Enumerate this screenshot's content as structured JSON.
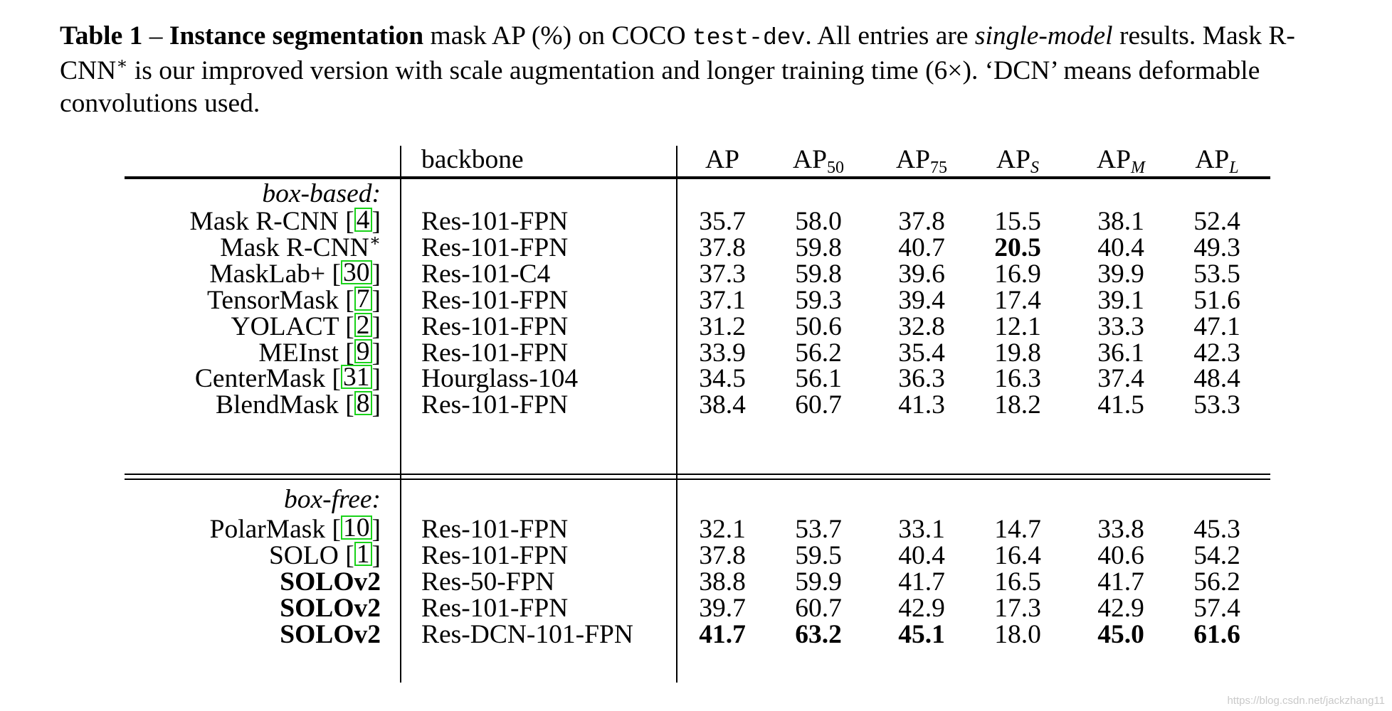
{
  "caption": {
    "label": "Table 1",
    "dash": " – ",
    "topic": "Instance segmentation",
    "part1": " mask AP (%) on COCO ",
    "code": "test-dev",
    "part2": ".  All entries are ",
    "emph": "single-model",
    "part3": " results. Mask R-CNN",
    "star": "∗",
    "part4": " is our improved version with scale augmentation and longer training time (6×). ‘DCN’ means deformable convolutions used."
  },
  "table": {
    "header": {
      "backbone": "backbone",
      "ap": "AP",
      "ap50_base": "AP",
      "ap50_sub": "50",
      "ap75_base": "AP",
      "ap75_sub": "75",
      "aps_base": "AP",
      "aps_sub": "S",
      "apm_base": "AP",
      "apm_sub": "M",
      "apl_base": "AP",
      "apl_sub": "L"
    },
    "groups": [
      {
        "title": "box-based:",
        "rows": [
          {
            "name": "Mask R-CNN [",
            "ref": "4",
            "close": "]",
            "backbone": "Res-101-FPN",
            "vals": [
              "35.7",
              "58.0",
              "37.8",
              "15.5",
              "38.1",
              "52.4"
            ],
            "bold": [
              false,
              false,
              false,
              false,
              false,
              false
            ]
          },
          {
            "name": "Mask R-CNN",
            "star": "∗",
            "backbone": "Res-101-FPN",
            "vals": [
              "37.8",
              "59.8",
              "40.7",
              "20.5",
              "40.4",
              "49.3"
            ],
            "bold": [
              false,
              false,
              false,
              true,
              false,
              false
            ]
          },
          {
            "name": "MaskLab+ [",
            "ref": "30",
            "close": "]",
            "backbone": "Res-101-C4",
            "vals": [
              "37.3",
              "59.8",
              "39.6",
              "16.9",
              "39.9",
              "53.5"
            ],
            "bold": [
              false,
              false,
              false,
              false,
              false,
              false
            ]
          },
          {
            "name": "TensorMask [",
            "ref": "7",
            "close": "]",
            "backbone": "Res-101-FPN",
            "vals": [
              "37.1",
              "59.3",
              "39.4",
              "17.4",
              "39.1",
              "51.6"
            ],
            "bold": [
              false,
              false,
              false,
              false,
              false,
              false
            ]
          },
          {
            "name": "YOLACT [",
            "ref": "2",
            "close": "]",
            "backbone": "Res-101-FPN",
            "vals": [
              "31.2",
              "50.6",
              "32.8",
              "12.1",
              "33.3",
              "47.1"
            ],
            "bold": [
              false,
              false,
              false,
              false,
              false,
              false
            ]
          },
          {
            "name": "MEInst [",
            "ref": "9",
            "close": "]",
            "backbone": "Res-101-FPN",
            "vals": [
              "33.9",
              "56.2",
              "35.4",
              "19.8",
              "36.1",
              "42.3"
            ],
            "bold": [
              false,
              false,
              false,
              false,
              false,
              false
            ]
          },
          {
            "name": "CenterMask [",
            "ref": "31",
            "close": "]",
            "backbone": "Hourglass-104",
            "vals": [
              "34.5",
              "56.1",
              "36.3",
              "16.3",
              "37.4",
              "48.4"
            ],
            "bold": [
              false,
              false,
              false,
              false,
              false,
              false
            ]
          },
          {
            "name": "BlendMask [",
            "ref": "8",
            "close": "]",
            "backbone": "Res-101-FPN",
            "vals": [
              "38.4",
              "60.7",
              "41.3",
              "18.2",
              "41.5",
              "53.3"
            ],
            "bold": [
              false,
              false,
              false,
              false,
              false,
              false
            ]
          }
        ]
      },
      {
        "title": "box-free:",
        "rows": [
          {
            "name": "PolarMask [",
            "ref": "10",
            "close": "]",
            "backbone": "Res-101-FPN",
            "vals": [
              "32.1",
              "53.7",
              "33.1",
              "14.7",
              "33.8",
              "45.3"
            ],
            "bold": [
              false,
              false,
              false,
              false,
              false,
              false
            ]
          },
          {
            "name": "SOLO [",
            "ref": "1",
            "close": "]",
            "backbone": "Res-101-FPN",
            "vals": [
              "37.8",
              "59.5",
              "40.4",
              "16.4",
              "40.6",
              "54.2"
            ],
            "bold": [
              false,
              false,
              false,
              false,
              false,
              false
            ]
          },
          {
            "name": "SOLOv2",
            "name_bold": true,
            "backbone": "Res-50-FPN",
            "vals": [
              "38.8",
              "59.9",
              "41.7",
              "16.5",
              "41.7",
              "56.2"
            ],
            "bold": [
              false,
              false,
              false,
              false,
              false,
              false
            ]
          },
          {
            "name": "SOLOv2",
            "name_bold": true,
            "backbone": "Res-101-FPN",
            "vals": [
              "39.7",
              "60.7",
              "42.9",
              "17.3",
              "42.9",
              "57.4"
            ],
            "bold": [
              false,
              false,
              false,
              false,
              false,
              false
            ]
          },
          {
            "name": "SOLOv2",
            "name_bold": true,
            "backbone": "Res-DCN-101-FPN",
            "vals": [
              "41.7",
              "63.2",
              "45.1",
              "18.0",
              "45.0",
              "61.6"
            ],
            "bold": [
              true,
              true,
              true,
              false,
              true,
              true
            ]
          }
        ]
      }
    ]
  },
  "watermark": "https://blog.csdn.net/jackzhang11"
}
